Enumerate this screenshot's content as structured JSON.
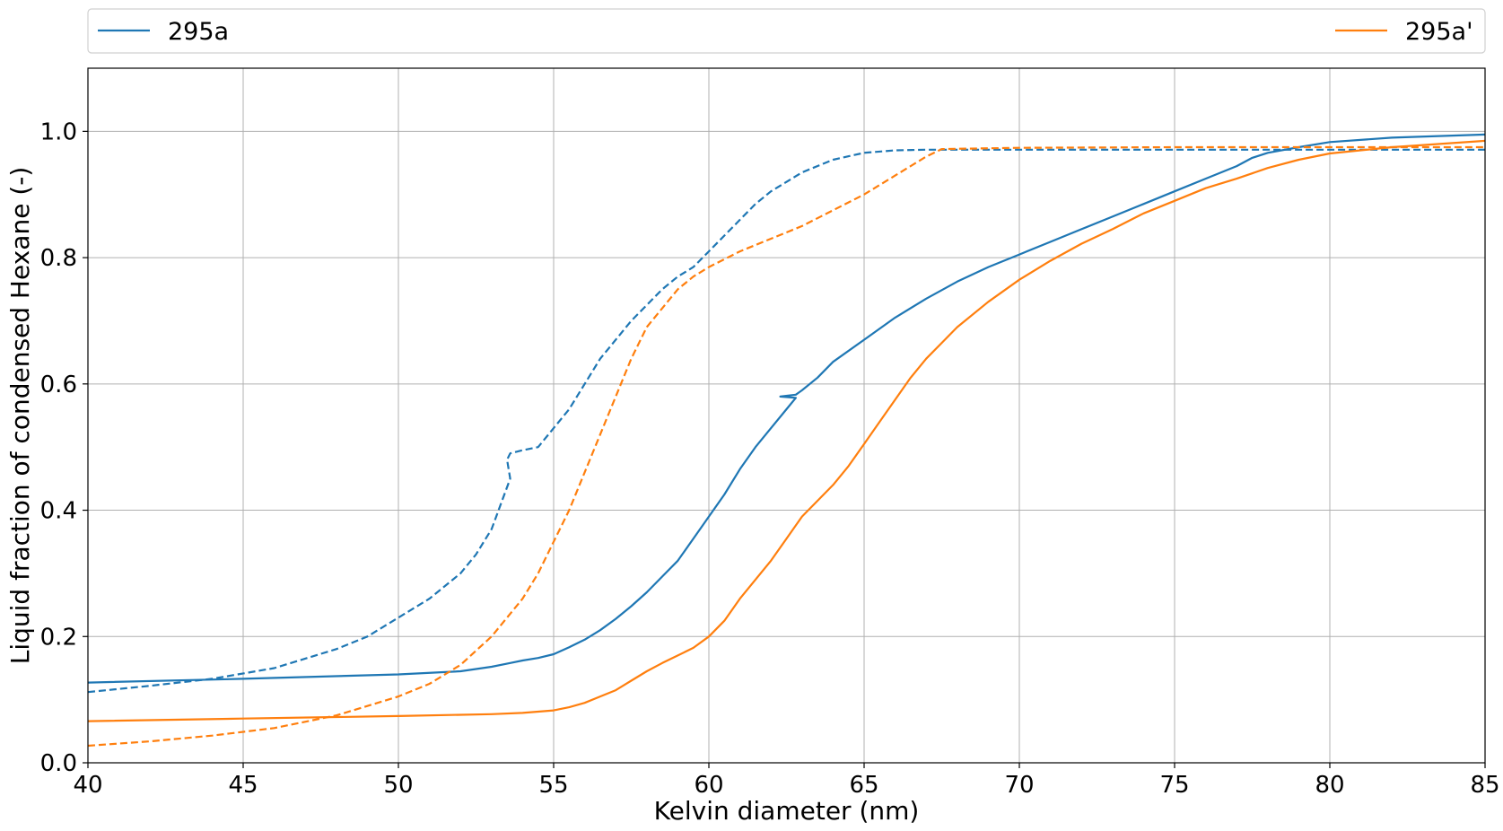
{
  "chart_data": {
    "type": "line",
    "title": "",
    "xlabel": "Kelvin diameter (nm)",
    "ylabel": "Liquid fraction of condensed Hexane (-)",
    "xlim": [
      40,
      85
    ],
    "ylim": [
      0,
      1.1
    ],
    "xticks": [
      40,
      45,
      50,
      55,
      60,
      65,
      70,
      75,
      80,
      85
    ],
    "xtick_labels": [
      "40",
      "45",
      "50",
      "55",
      "60",
      "65",
      "70",
      "75",
      "80",
      "85"
    ],
    "yticks": [
      0.0,
      0.2,
      0.4,
      0.6,
      0.8,
      1.0
    ],
    "ytick_labels": [
      "0.0",
      "0.2",
      "0.4",
      "0.6",
      "0.8",
      "1.0"
    ],
    "grid": true,
    "legend_placement": "top, outside plot",
    "legend": [
      {
        "label": "295a",
        "color": "#1f77b4"
      },
      {
        "label": "295a'",
        "color": "#ff7f0e"
      }
    ],
    "series": [
      {
        "name": "295a",
        "color": "#1f77b4",
        "style": "solid",
        "x": [
          40,
          45,
          50,
          52,
          53,
          53.6,
          54,
          54.5,
          55,
          55.5,
          56,
          56.5,
          57,
          57.5,
          58,
          58.5,
          59,
          59.5,
          60,
          60.5,
          61,
          61.5,
          62,
          62.5,
          62.8,
          62.3,
          62.8,
          63,
          63.5,
          64,
          65,
          66,
          67,
          68,
          69,
          70,
          71,
          72,
          73,
          74,
          75,
          76,
          77,
          77.5,
          78,
          79,
          80,
          82,
          85
        ],
        "y": [
          0.127,
          0.133,
          0.14,
          0.145,
          0.152,
          0.158,
          0.162,
          0.166,
          0.172,
          0.183,
          0.195,
          0.21,
          0.228,
          0.248,
          0.27,
          0.295,
          0.32,
          0.355,
          0.39,
          0.425,
          0.465,
          0.5,
          0.53,
          0.56,
          0.578,
          0.58,
          0.583,
          0.59,
          0.61,
          0.635,
          0.67,
          0.705,
          0.735,
          0.762,
          0.785,
          0.805,
          0.825,
          0.845,
          0.865,
          0.885,
          0.905,
          0.925,
          0.945,
          0.958,
          0.966,
          0.975,
          0.983,
          0.99,
          0.995
        ]
      },
      {
        "name": "295a",
        "color": "#1f77b4",
        "style": "dashed",
        "x": [
          40,
          42,
          44,
          46,
          48,
          49,
          50,
          51,
          51.5,
          52,
          52.5,
          53,
          53.3,
          53.6,
          53.5,
          53.6,
          54,
          54.5,
          55,
          55.5,
          56,
          56.5,
          57,
          57.5,
          58,
          58.5,
          59,
          59.5,
          60,
          60.5,
          61,
          61.5,
          62,
          62.5,
          63,
          64,
          65,
          66,
          67,
          70,
          75,
          80,
          85
        ],
        "y": [
          0.112,
          0.122,
          0.133,
          0.15,
          0.18,
          0.2,
          0.23,
          0.26,
          0.28,
          0.3,
          0.33,
          0.37,
          0.41,
          0.45,
          0.48,
          0.49,
          0.495,
          0.5,
          0.53,
          0.56,
          0.6,
          0.64,
          0.67,
          0.7,
          0.725,
          0.75,
          0.77,
          0.785,
          0.81,
          0.835,
          0.86,
          0.885,
          0.905,
          0.92,
          0.935,
          0.955,
          0.966,
          0.97,
          0.971,
          0.971,
          0.971,
          0.971,
          0.971
        ]
      },
      {
        "name": "295a'",
        "color": "#ff7f0e",
        "style": "solid",
        "x": [
          40,
          45,
          50,
          53,
          54,
          55,
          55.5,
          56,
          56.5,
          57,
          57.5,
          58,
          58.5,
          59,
          59.5,
          60,
          60.5,
          61,
          61.5,
          62,
          62.5,
          63,
          63.5,
          64,
          64.5,
          65,
          65.5,
          66,
          66.5,
          67,
          67.5,
          68,
          69,
          70,
          71,
          72,
          73,
          74,
          75,
          76,
          77,
          78,
          79,
          80,
          82,
          85
        ],
        "y": [
          0.066,
          0.07,
          0.074,
          0.077,
          0.079,
          0.083,
          0.088,
          0.095,
          0.105,
          0.115,
          0.13,
          0.145,
          0.158,
          0.17,
          0.182,
          0.2,
          0.225,
          0.26,
          0.29,
          0.32,
          0.355,
          0.39,
          0.415,
          0.44,
          0.47,
          0.505,
          0.54,
          0.575,
          0.61,
          0.64,
          0.665,
          0.69,
          0.73,
          0.765,
          0.795,
          0.822,
          0.845,
          0.87,
          0.89,
          0.91,
          0.925,
          0.942,
          0.955,
          0.965,
          0.975,
          0.985
        ]
      },
      {
        "name": "295a'",
        "color": "#ff7f0e",
        "style": "dashed",
        "x": [
          40,
          42,
          44,
          46,
          48,
          49,
          50,
          51,
          52,
          53,
          54,
          54.5,
          55,
          55.5,
          56,
          56.5,
          57,
          57.5,
          58,
          58.5,
          59,
          59.5,
          60,
          61,
          62,
          63,
          64,
          65,
          66,
          67,
          67.5,
          70,
          75,
          80,
          85
        ],
        "y": [
          0.027,
          0.034,
          0.043,
          0.055,
          0.075,
          0.09,
          0.105,
          0.125,
          0.155,
          0.2,
          0.26,
          0.3,
          0.35,
          0.4,
          0.46,
          0.52,
          0.58,
          0.64,
          0.69,
          0.72,
          0.75,
          0.77,
          0.785,
          0.81,
          0.83,
          0.85,
          0.875,
          0.9,
          0.93,
          0.96,
          0.972,
          0.974,
          0.975,
          0.975,
          0.975
        ]
      }
    ]
  }
}
